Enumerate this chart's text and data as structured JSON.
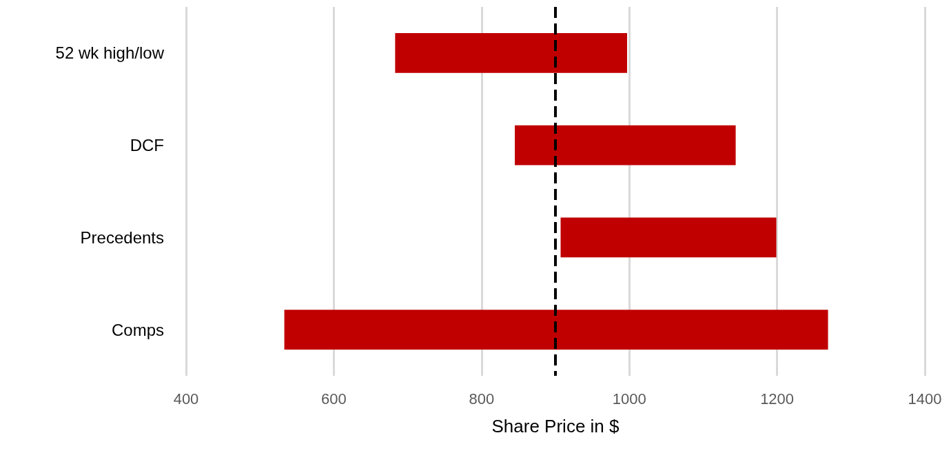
{
  "chart_data": {
    "type": "bar",
    "orientation": "horizontal",
    "xlabel": "Share Price in $",
    "categories": [
      "52 wk high/low",
      "DCF",
      "Precedents",
      "Comps"
    ],
    "base": [
      683,
      845,
      907,
      533
    ],
    "values": [
      314,
      299,
      292,
      736
    ],
    "color": "#c00000",
    "xlim": [
      400,
      1400
    ],
    "xticks": [
      400,
      600,
      800,
      1000,
      1200,
      1400
    ],
    "grid": "x",
    "ref_lines": [
      {
        "axis": "x",
        "value": 900,
        "color": "#000000",
        "line_style": "dashed"
      }
    ]
  }
}
